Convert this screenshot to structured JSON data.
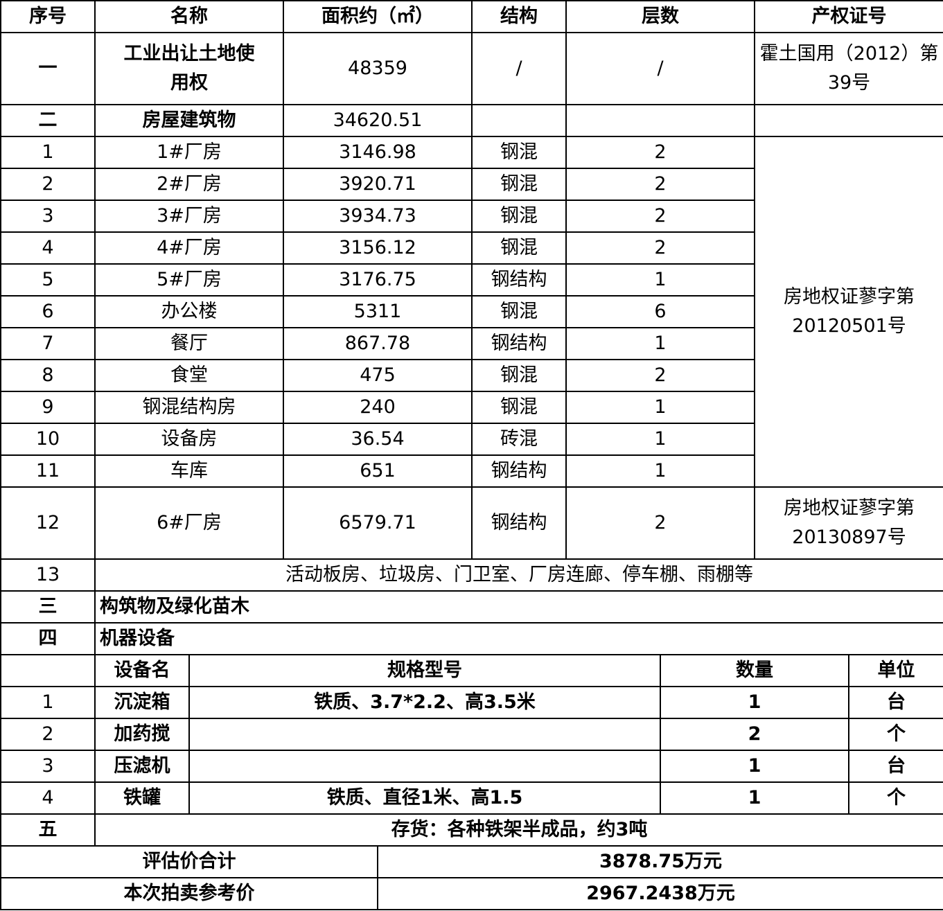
{
  "header": {
    "seq": "序号",
    "name": "名称",
    "area": "面积约（㎡）",
    "structure": "结构",
    "floors": "层数",
    "cert": "产权证号"
  },
  "land": {
    "seq": "一",
    "name": "工业出让土地使用权",
    "area": "48359",
    "structure": "/",
    "floors": "/",
    "cert": "霍土国用（2012）第39号"
  },
  "buildings_total": {
    "seq": "二",
    "name": "房屋建筑物",
    "area": "34620.51"
  },
  "buildings": [
    {
      "seq": "1",
      "name": "1#厂房",
      "area": "3146.98",
      "structure": "钢混",
      "floors": "2"
    },
    {
      "seq": "2",
      "name": "2#厂房",
      "area": "3920.71",
      "structure": "钢混",
      "floors": "2"
    },
    {
      "seq": "3",
      "name": "3#厂房",
      "area": "3934.73",
      "structure": "钢混",
      "floors": "2"
    },
    {
      "seq": "4",
      "name": "4#厂房",
      "area": "3156.12",
      "structure": "钢混",
      "floors": "2"
    },
    {
      "seq": "5",
      "name": "5#厂房",
      "area": "3176.75",
      "structure": "钢结构",
      "floors": "1"
    },
    {
      "seq": "6",
      "name": "办公楼",
      "area": "5311",
      "structure": "钢混",
      "floors": "6"
    },
    {
      "seq": "7",
      "name": "餐厅",
      "area": "867.78",
      "structure": "钢结构",
      "floors": "1"
    },
    {
      "seq": "8",
      "name": "食堂",
      "area": "475",
      "structure": "钢混",
      "floors": "2"
    },
    {
      "seq": "9",
      "name": "钢混结构房",
      "area": "240",
      "structure": "钢混",
      "floors": "1"
    },
    {
      "seq": "10",
      "name": "设备房",
      "area": "36.54",
      "structure": "砖混",
      "floors": "1"
    },
    {
      "seq": "11",
      "name": "车库",
      "area": "651",
      "structure": "钢结构",
      "floors": "1"
    }
  ],
  "buildings_cert": "房地权证蓼字第20120501号",
  "building12": {
    "seq": "12",
    "name": "6#厂房",
    "area": "6579.71",
    "structure": "钢结构",
    "floors": "2",
    "cert": "房地权证蓼字第20130897号"
  },
  "building13": {
    "seq": "13",
    "desc": "活动板房、垃圾房、门卫室、厂房连廊、停车棚、雨棚等"
  },
  "structures": {
    "seq": "三",
    "name": "构筑物及绿化苗木"
  },
  "machinery": {
    "seq": "四",
    "name": "机器设备"
  },
  "equipment_header": {
    "name": "设备名",
    "spec": "规格型号",
    "qty": "数量",
    "unit": "单位"
  },
  "equipment": [
    {
      "seq": "1",
      "name": "沉淀箱",
      "spec": "铁质、3.7*2.2、高3.5米",
      "qty": "1",
      "unit": "台"
    },
    {
      "seq": "2",
      "name": "加药搅",
      "spec": "",
      "qty": "2",
      "unit": "个"
    },
    {
      "seq": "3",
      "name": "压滤机",
      "spec": "",
      "qty": "1",
      "unit": "台"
    },
    {
      "seq": "4",
      "name": "铁罐",
      "spec": "铁质、直径1米、高1.5",
      "qty": "1",
      "unit": "个"
    }
  ],
  "inventory": {
    "seq": "五",
    "desc": "存货：各种铁架半成品，约3吨"
  },
  "totals": {
    "appraisal_label": "评估价合计",
    "appraisal_value": "3878.75万元",
    "auction_label": "本次拍卖参考价",
    "auction_value": "2967.2438万元"
  }
}
